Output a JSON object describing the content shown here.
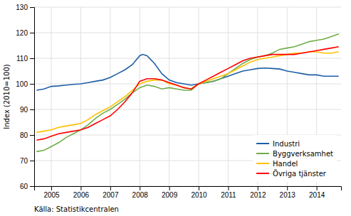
{
  "chart_data": {
    "type": "line",
    "ylabel": "Index (2010=100)",
    "source": "Källa: Statistikcentralen",
    "xlim": [
      2004.42,
      2014.83
    ],
    "xticks": [
      2005,
      2006,
      2007,
      2008,
      2009,
      2010,
      2011,
      2012,
      2013,
      2014
    ],
    "ylim": [
      60,
      130
    ],
    "yticks": [
      60,
      70,
      80,
      90,
      100,
      110,
      120,
      130
    ],
    "grid": true,
    "legend": "lower right",
    "series": [
      {
        "name": "Industri",
        "color": "#1f5fa6",
        "x": [
          2004.5,
          2004.75,
          2005.0,
          2005.25,
          2005.5,
          2005.75,
          2006.0,
          2006.25,
          2006.5,
          2006.75,
          2007.0,
          2007.25,
          2007.5,
          2007.75,
          2008.0,
          2008.1,
          2008.25,
          2008.5,
          2008.75,
          2009.0,
          2009.25,
          2009.5,
          2009.75,
          2010.0,
          2010.25,
          2010.5,
          2010.75,
          2011.0,
          2011.25,
          2011.5,
          2011.75,
          2012.0,
          2012.25,
          2012.5,
          2012.75,
          2013.0,
          2013.25,
          2013.5,
          2013.75,
          2014.0,
          2014.25,
          2014.5,
          2014.75
        ],
        "values": [
          97.5,
          98.0,
          99.0,
          99.2,
          99.5,
          99.8,
          100.0,
          100.5,
          101.0,
          101.5,
          102.5,
          104.0,
          105.5,
          107.5,
          111.0,
          111.5,
          111.0,
          108.0,
          104.0,
          101.5,
          100.5,
          100.0,
          99.5,
          100.0,
          100.5,
          101.0,
          102.0,
          103.0,
          104.0,
          105.0,
          105.5,
          106.0,
          106.2,
          106.0,
          105.8,
          105.0,
          104.5,
          104.0,
          103.5,
          103.5,
          103.0,
          103.0,
          103.0
        ]
      },
      {
        "name": "Byggverksamhet",
        "color": "#70ad47",
        "x": [
          2004.5,
          2004.75,
          2005.0,
          2005.25,
          2005.5,
          2005.75,
          2006.0,
          2006.25,
          2006.5,
          2006.75,
          2007.0,
          2007.25,
          2007.5,
          2007.75,
          2008.0,
          2008.25,
          2008.5,
          2008.75,
          2009.0,
          2009.25,
          2009.5,
          2009.75,
          2010.0,
          2010.25,
          2010.5,
          2010.75,
          2011.0,
          2011.25,
          2011.5,
          2011.75,
          2012.0,
          2012.25,
          2012.5,
          2012.75,
          2013.0,
          2013.25,
          2013.5,
          2013.75,
          2014.0,
          2014.25,
          2014.5,
          2014.75
        ],
        "values": [
          73.5,
          74.0,
          75.5,
          77.0,
          79.0,
          80.5,
          82.0,
          84.0,
          86.5,
          88.5,
          90.0,
          92.0,
          94.0,
          96.5,
          98.5,
          99.5,
          99.0,
          98.0,
          98.5,
          98.0,
          97.5,
          97.5,
          100.0,
          100.5,
          101.0,
          102.0,
          104.0,
          106.0,
          108.0,
          109.5,
          110.5,
          111.0,
          112.0,
          113.5,
          114.0,
          114.5,
          115.5,
          116.5,
          117.0,
          117.5,
          118.5,
          119.5
        ]
      },
      {
        "name": "Handel",
        "color": "#ffc000",
        "x": [
          2004.5,
          2004.75,
          2005.0,
          2005.25,
          2005.5,
          2005.75,
          2006.0,
          2006.25,
          2006.5,
          2006.75,
          2007.0,
          2007.25,
          2007.5,
          2007.75,
          2008.0,
          2008.25,
          2008.5,
          2008.75,
          2009.0,
          2009.25,
          2009.5,
          2009.75,
          2010.0,
          2010.25,
          2010.5,
          2010.75,
          2011.0,
          2011.25,
          2011.5,
          2011.75,
          2012.0,
          2012.25,
          2012.5,
          2012.75,
          2013.0,
          2013.25,
          2013.5,
          2013.75,
          2014.0,
          2014.25,
          2014.5,
          2014.75
        ],
        "values": [
          81.0,
          81.5,
          82.0,
          83.0,
          83.5,
          84.0,
          84.5,
          86.0,
          88.0,
          89.5,
          91.0,
          93.0,
          95.0,
          97.5,
          100.0,
          101.0,
          101.5,
          101.5,
          100.0,
          99.5,
          98.5,
          98.0,
          100.0,
          101.0,
          102.0,
          103.0,
          104.0,
          105.5,
          107.0,
          108.5,
          109.5,
          110.0,
          110.5,
          111.0,
          111.5,
          112.0,
          112.0,
          112.5,
          112.5,
          112.0,
          112.0,
          112.5
        ]
      },
      {
        "name": "Övriga tjänster",
        "color": "#ff0000",
        "x": [
          2004.5,
          2004.75,
          2005.0,
          2005.25,
          2005.5,
          2005.75,
          2006.0,
          2006.25,
          2006.5,
          2006.75,
          2007.0,
          2007.25,
          2007.5,
          2007.75,
          2008.0,
          2008.25,
          2008.5,
          2008.75,
          2009.0,
          2009.25,
          2009.5,
          2009.75,
          2010.0,
          2010.25,
          2010.5,
          2010.75,
          2011.0,
          2011.25,
          2011.5,
          2011.75,
          2012.0,
          2012.25,
          2012.5,
          2012.75,
          2013.0,
          2013.25,
          2013.5,
          2013.75,
          2014.0,
          2014.25,
          2014.5,
          2014.75
        ],
        "values": [
          78.0,
          78.5,
          79.5,
          80.5,
          81.0,
          81.5,
          82.0,
          83.0,
          84.5,
          86.0,
          87.5,
          90.0,
          93.0,
          96.5,
          101.0,
          102.0,
          102.0,
          101.5,
          100.5,
          99.5,
          98.5,
          98.0,
          100.0,
          101.5,
          103.0,
          104.5,
          106.0,
          107.5,
          109.0,
          110.0,
          110.5,
          111.0,
          111.5,
          111.5,
          111.5,
          111.5,
          112.0,
          112.5,
          113.0,
          113.5,
          114.0,
          114.5
        ]
      }
    ]
  }
}
